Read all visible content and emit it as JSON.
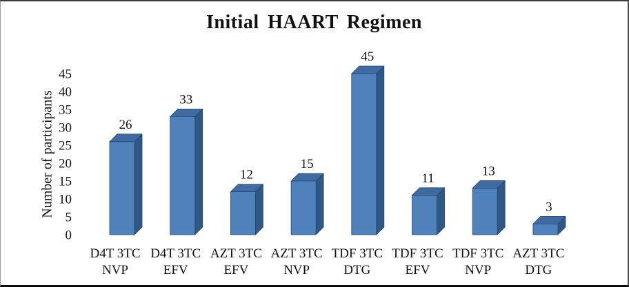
{
  "frame": {
    "background": "#ffffff",
    "border_color": "#3c3c3c"
  },
  "chart_data": {
    "type": "bar",
    "style": "3d",
    "title": "Initial HAART Regimen",
    "xlabel": "",
    "ylabel": "Number of participants",
    "categories": [
      "D4T 3TC NVP",
      "D4T 3TC EFV",
      "AZT 3TC EFV",
      "AZT 3TC NVP",
      "TDF 3TC DTG",
      "TDF 3TC EFV",
      "TDF 3TC NVP",
      "AZT 3TC DTG"
    ],
    "values": [
      26,
      33,
      12,
      15,
      45,
      11,
      13,
      3
    ],
    "data_labels": [
      26,
      33,
      12,
      15,
      45,
      11,
      13,
      3
    ],
    "yticks": [
      0,
      5,
      10,
      15,
      20,
      25,
      30,
      35,
      40,
      45
    ],
    "ylim": [
      0,
      45
    ],
    "grid": false,
    "legend": false,
    "colors": {
      "bar_front": "#4f81bd",
      "bar_top": "#3f6ba1",
      "bar_side": "#2f5886",
      "bar_edge": "#24476f",
      "text": "#111111"
    }
  }
}
